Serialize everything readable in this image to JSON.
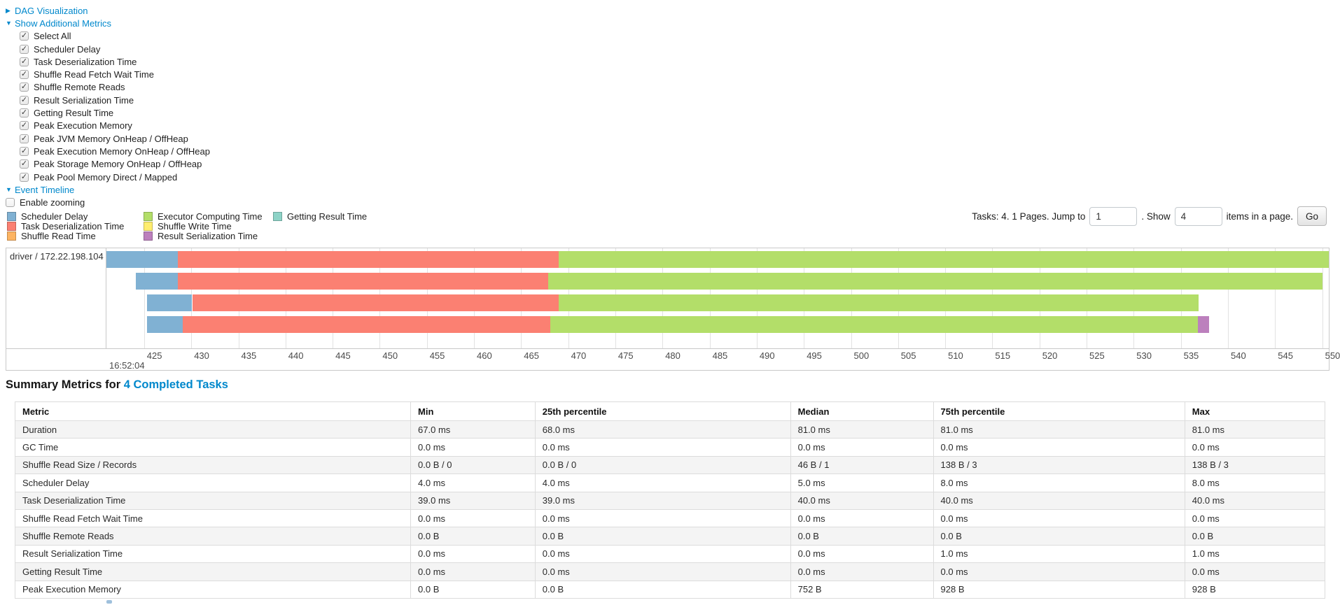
{
  "sections": {
    "dag": {
      "label": "DAG Visualization",
      "arrow": "▶"
    },
    "additional_metrics": {
      "label": "Show Additional Metrics",
      "arrow": "▼"
    },
    "metric_checkboxes": [
      {
        "label": "Select All",
        "checked": true
      },
      {
        "label": "Scheduler Delay",
        "checked": true
      },
      {
        "label": "Task Deserialization Time",
        "checked": true
      },
      {
        "label": "Shuffle Read Fetch Wait Time",
        "checked": true
      },
      {
        "label": "Shuffle Remote Reads",
        "checked": true
      },
      {
        "label": "Result Serialization Time",
        "checked": true
      },
      {
        "label": "Getting Result Time",
        "checked": true
      },
      {
        "label": "Peak Execution Memory",
        "checked": true
      },
      {
        "label": "Peak JVM Memory OnHeap / OffHeap",
        "checked": true
      },
      {
        "label": "Peak Execution Memory OnHeap / OffHeap",
        "checked": true
      },
      {
        "label": "Peak Storage Memory OnHeap / OffHeap",
        "checked": true
      },
      {
        "label": "Peak Pool Memory Direct / Mapped",
        "checked": true
      }
    ],
    "event_timeline": {
      "label": "Event Timeline",
      "arrow": "▼"
    },
    "enable_zooming": {
      "label": "Enable zooming",
      "checked": false
    }
  },
  "pager": {
    "tasks_text": "Tasks: 4. 1 Pages. Jump to",
    "jump_value": "1",
    "mid_text": ". Show",
    "show_value": "4",
    "after_text": "items in a page.",
    "go_label": "Go"
  },
  "palette": {
    "scheduler_delay": "#80B1D3",
    "task_deserialization": "#FB8072",
    "shuffle_read": "#FDB462",
    "executor_computing": "#B3DE69",
    "shuffle_write": "#FFED6F",
    "result_serialization": "#BC80BD",
    "getting_result": "#8DD3C7"
  },
  "chart_data": {
    "type": "timeline",
    "group_label": "driver / 172.22.198.104",
    "time_origin_label": "16:52:04",
    "axis_unit": "milliseconds within 16:52:04",
    "xlim": [
      421.0,
      550.7
    ],
    "axis_ticks": [
      425,
      430,
      435,
      440,
      445,
      450,
      455,
      460,
      465,
      470,
      475,
      480,
      485,
      490,
      495,
      500,
      505,
      510,
      515,
      520,
      525,
      530,
      535,
      540,
      545,
      550
    ],
    "grid": true,
    "legend_position": "top-left",
    "legend": [
      {
        "label": "Scheduler Delay",
        "color_key": "scheduler_delay",
        "column": 0
      },
      {
        "label": "Task Deserialization Time",
        "color_key": "task_deserialization",
        "column": 0
      },
      {
        "label": "Shuffle Read Time",
        "color_key": "shuffle_read",
        "column": 0
      },
      {
        "label": "Executor Computing Time",
        "color_key": "executor_computing",
        "column": 1
      },
      {
        "label": "Shuffle Write Time",
        "color_key": "shuffle_write",
        "column": 1
      },
      {
        "label": "Result Serialization Time",
        "color_key": "result_serialization",
        "column": 1
      },
      {
        "label": "Getting Result Time",
        "color_key": "getting_result",
        "column": 2
      }
    ],
    "tasks": [
      {
        "row": 0,
        "segments": [
          {
            "name": "scheduler_delay",
            "start": 421.0,
            "end": 428.6
          },
          {
            "name": "task_deserialization",
            "start": 428.6,
            "end": 469.0
          },
          {
            "name": "executor_computing",
            "start": 469.0,
            "end": 550.7
          }
        ]
      },
      {
        "row": 1,
        "segments": [
          {
            "name": "scheduler_delay",
            "start": 424.1,
            "end": 428.6
          },
          {
            "name": "task_deserialization",
            "start": 428.6,
            "end": 467.9
          },
          {
            "name": "executor_computing",
            "start": 467.9,
            "end": 550.0
          }
        ]
      },
      {
        "row": 2,
        "segments": [
          {
            "name": "scheduler_delay",
            "start": 425.3,
            "end": 430.1
          },
          {
            "name": "task_deserialization",
            "start": 430.1,
            "end": 469.0
          },
          {
            "name": "executor_computing",
            "start": 469.0,
            "end": 536.9
          }
        ]
      },
      {
        "row": 3,
        "segments": [
          {
            "name": "scheduler_delay",
            "start": 425.3,
            "end": 429.1
          },
          {
            "name": "task_deserialization",
            "start": 429.1,
            "end": 468.1
          },
          {
            "name": "executor_computing",
            "start": 468.1,
            "end": 536.8
          },
          {
            "name": "result_serialization",
            "start": 536.8,
            "end": 538.0
          }
        ]
      }
    ]
  },
  "summary": {
    "title_prefix": "Summary Metrics for",
    "title_link": "4 Completed Tasks",
    "table": {
      "headers": [
        "Metric",
        "Min",
        "25th percentile",
        "Median",
        "75th percentile",
        "Max"
      ],
      "col_widths": [
        "30.2%",
        "9.5%",
        "19.5%",
        "10.9%",
        "19.2%",
        "10.7%"
      ],
      "rows": [
        [
          "Duration",
          "67.0 ms",
          "68.0 ms",
          "81.0 ms",
          "81.0 ms",
          "81.0 ms"
        ],
        [
          "GC Time",
          "0.0 ms",
          "0.0 ms",
          "0.0 ms",
          "0.0 ms",
          "0.0 ms"
        ],
        [
          "Shuffle Read Size / Records",
          "0.0 B / 0",
          "0.0 B / 0",
          "46 B / 1",
          "138 B / 3",
          "138 B / 3"
        ],
        [
          "Scheduler Delay",
          "4.0 ms",
          "4.0 ms",
          "5.0 ms",
          "8.0 ms",
          "8.0 ms"
        ],
        [
          "Task Deserialization Time",
          "39.0 ms",
          "39.0 ms",
          "40.0 ms",
          "40.0 ms",
          "40.0 ms"
        ],
        [
          "Shuffle Read Fetch Wait Time",
          "0.0 ms",
          "0.0 ms",
          "0.0 ms",
          "0.0 ms",
          "0.0 ms"
        ],
        [
          "Shuffle Remote Reads",
          "0.0 B",
          "0.0 B",
          "0.0 B",
          "0.0 B",
          "0.0 B"
        ],
        [
          "Result Serialization Time",
          "0.0 ms",
          "0.0 ms",
          "0.0 ms",
          "1.0 ms",
          "1.0 ms"
        ],
        [
          "Getting Result Time",
          "0.0 ms",
          "0.0 ms",
          "0.0 ms",
          "0.0 ms",
          "0.0 ms"
        ],
        [
          "Peak Execution Memory",
          "0.0 B",
          "0.0 B",
          "752 B",
          "928 B",
          "928 B"
        ]
      ]
    }
  }
}
